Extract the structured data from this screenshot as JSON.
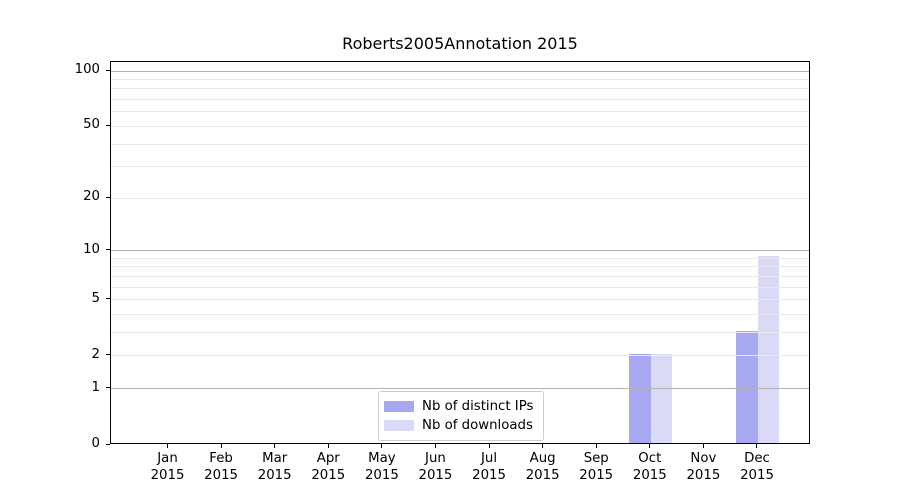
{
  "title": "Roberts2005Annotation 2015",
  "legend": {
    "items": [
      {
        "label": "Nb of distinct IPs",
        "color": "#a8a8f2"
      },
      {
        "label": "Nb of downloads",
        "color": "#dadaf7"
      }
    ]
  },
  "colors": {
    "spine": "#000000",
    "grid_major": "#b3b3b3",
    "grid_minor": "#e9e9e9",
    "background": "#ffffff"
  },
  "chart_data": {
    "type": "bar",
    "title": "Roberts2005Annotation 2015",
    "xlabel": "",
    "ylabel": "",
    "y_scale": "log10(1+y)",
    "ylim": [
      0,
      112
    ],
    "grid": true,
    "legend_position": "lower center",
    "categories": [
      "Jan 2015",
      "Feb 2015",
      "Mar 2015",
      "Apr 2015",
      "May 2015",
      "Jun 2015",
      "Jul 2015",
      "Aug 2015",
      "Sep 2015",
      "Oct 2015",
      "Nov 2015",
      "Dec 2015"
    ],
    "y_major_ticks": [
      0,
      1,
      10,
      100
    ],
    "y_minor_labeled_ticks": [
      2,
      5,
      20,
      50
    ],
    "y_tick_labels": [
      "0",
      "1",
      "2",
      "5",
      "10",
      "20",
      "50",
      "100"
    ],
    "y_minor_grid_values": [
      2,
      3,
      4,
      5,
      6,
      7,
      8,
      9,
      20,
      30,
      40,
      50,
      60,
      70,
      80,
      90
    ],
    "series": [
      {
        "name": "Nb of distinct IPs",
        "color": "#a8a8f2",
        "values": [
          0,
          0,
          0,
          0,
          0,
          0,
          0,
          0,
          0,
          2,
          0,
          3
        ]
      },
      {
        "name": "Nb of downloads",
        "color": "#dadaf7",
        "values": [
          0,
          0,
          0,
          0,
          0,
          0,
          0,
          0,
          0,
          2,
          0,
          9
        ]
      }
    ]
  }
}
